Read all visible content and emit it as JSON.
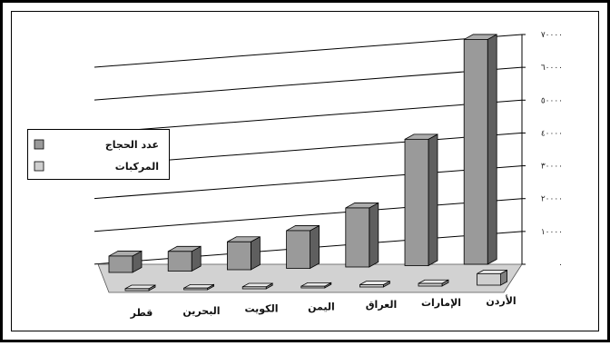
{
  "chart_data": {
    "type": "bar",
    "title": "",
    "xlabel": "",
    "ylabel": "",
    "ylim": [
      0,
      70000
    ],
    "y_ticks": [
      "٧٠٠٠٠",
      "٦٠٠٠٠",
      "٥٠٠٠٠",
      "٤٠٠٠٠",
      "٣٠٠٠٠",
      "٢٠٠٠٠",
      "١٠٠٠٠",
      "٠"
    ],
    "categories": [
      "قطر",
      "البحرين",
      "الكويت",
      "اليمن",
      "العراق",
      "الإمارات",
      "الأردن"
    ],
    "series": [
      {
        "name": "عدد الحجاج",
        "color": "#9a9a9a",
        "values": [
          5000,
          6000,
          8500,
          11500,
          18000,
          38500,
          68500
        ]
      },
      {
        "name": "المركبات",
        "color": "#cfcfcf",
        "values": [
          600,
          500,
          600,
          500,
          700,
          800,
          3500
        ]
      }
    ],
    "legend_position": "left",
    "grid": true,
    "view": "3d"
  }
}
